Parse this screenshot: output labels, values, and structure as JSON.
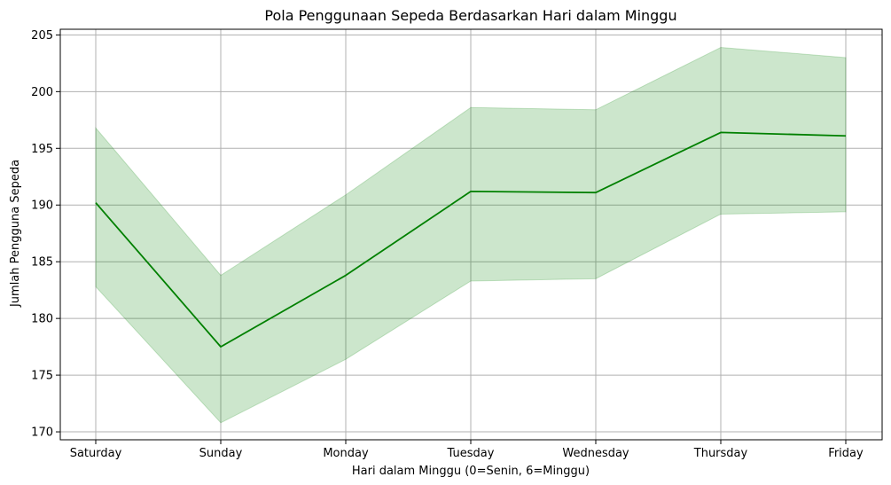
{
  "chart_data": {
    "type": "line",
    "title": "Pola Penggunaan Sepeda Berdasarkan Hari dalam Minggu",
    "xlabel": "Hari dalam Minggu (0=Senin, 6=Minggu)",
    "ylabel": "Jumlah Pengguna Sepeda",
    "categories": [
      "Saturday",
      "Sunday",
      "Monday",
      "Tuesday",
      "Wednesday",
      "Thursday",
      "Friday"
    ],
    "series": [
      {
        "values": [
          190.2,
          177.5,
          183.8,
          191.2,
          191.1,
          196.4,
          196.1
        ],
        "ci_lower": [
          182.8,
          170.8,
          176.4,
          183.3,
          183.5,
          189.2,
          189.4
        ],
        "ci_upper": [
          196.8,
          183.8,
          190.9,
          198.6,
          198.4,
          203.9,
          203.0
        ],
        "color": "#008000",
        "band_color": "#008000"
      }
    ],
    "ylim": [
      169.3,
      205.5
    ],
    "yticks": [
      170,
      175,
      180,
      185,
      190,
      195,
      200,
      205
    ],
    "grid": true
  }
}
